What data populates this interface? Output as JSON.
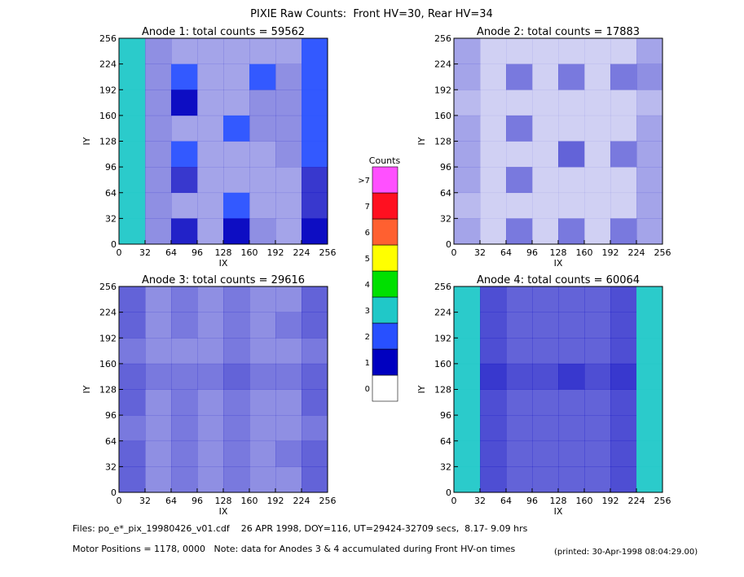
{
  "title": "PIXIE Raw Counts:  Front HV=30, Rear HV=34",
  "chart_data": [
    {
      "type": "heatmap",
      "title": "Anode 1: total counts = 59562",
      "x_label": "IX",
      "y_label": "IY",
      "xlim": [
        0,
        256
      ],
      "ylim": [
        0,
        256
      ],
      "xticks": [
        0,
        32,
        64,
        96,
        128,
        160,
        192,
        224,
        256
      ],
      "yticks": [
        0,
        32,
        64,
        96,
        128,
        160,
        192,
        224,
        256
      ],
      "values": [
        [
          2.5,
          0.4,
          0.3,
          0.3,
          0.3,
          0.3,
          0.3,
          1.2
        ],
        [
          2.5,
          0.4,
          1.2,
          0.3,
          0.3,
          1.2,
          0.4,
          1.5
        ],
        [
          2.5,
          0.4,
          1.0,
          0.3,
          0.3,
          0.4,
          0.4,
          1.2
        ],
        [
          2.5,
          0.4,
          0.3,
          0.3,
          1.2,
          0.4,
          0.4,
          1.8
        ],
        [
          2.5,
          0.4,
          1.2,
          0.3,
          0.3,
          0.3,
          0.4,
          1.2
        ],
        [
          2.5,
          0.4,
          0.8,
          0.3,
          0.3,
          0.3,
          0.3,
          0.8
        ],
        [
          2.5,
          0.4,
          0.3,
          0.3,
          1.2,
          0.3,
          0.3,
          0.8
        ],
        [
          2.5,
          0.4,
          0.9,
          0.3,
          1.0,
          0.4,
          0.3,
          1.0
        ]
      ]
    },
    {
      "type": "heatmap",
      "title": "Anode 2: total counts = 17883",
      "x_label": "IX",
      "y_label": "IY",
      "xlim": [
        0,
        256
      ],
      "ylim": [
        0,
        256
      ],
      "xticks": [
        0,
        32,
        64,
        96,
        128,
        160,
        192,
        224,
        256
      ],
      "yticks": [
        0,
        32,
        64,
        96,
        128,
        160,
        192,
        224,
        256
      ],
      "values": [
        [
          0.3,
          0.1,
          0.1,
          0.1,
          0.1,
          0.1,
          0.1,
          0.3
        ],
        [
          0.3,
          0.1,
          0.5,
          0.1,
          0.5,
          0.1,
          0.5,
          0.4
        ],
        [
          0.2,
          0.1,
          0.1,
          0.1,
          0.1,
          0.1,
          0.1,
          0.2
        ],
        [
          0.3,
          0.1,
          0.5,
          0.1,
          0.1,
          0.1,
          0.1,
          0.3
        ],
        [
          0.3,
          0.1,
          0.1,
          0.1,
          0.6,
          0.1,
          0.5,
          0.3
        ],
        [
          0.3,
          0.1,
          0.5,
          0.1,
          0.1,
          0.1,
          0.1,
          0.3
        ],
        [
          0.2,
          0.1,
          0.1,
          0.1,
          0.1,
          0.1,
          0.1,
          0.3
        ],
        [
          0.3,
          0.1,
          0.5,
          0.1,
          0.5,
          0.1,
          0.5,
          0.3
        ]
      ]
    },
    {
      "type": "heatmap",
      "title": "Anode 3: total counts = 29616",
      "x_label": "IX",
      "y_label": "IY",
      "xlim": [
        0,
        256
      ],
      "ylim": [
        0,
        256
      ],
      "xticks": [
        0,
        32,
        64,
        96,
        128,
        160,
        192,
        224,
        256
      ],
      "yticks": [
        0,
        32,
        64,
        96,
        128,
        160,
        192,
        224,
        256
      ],
      "values": [
        [
          0.6,
          0.4,
          0.5,
          0.4,
          0.5,
          0.4,
          0.4,
          0.6
        ],
        [
          0.6,
          0.4,
          0.5,
          0.4,
          0.5,
          0.4,
          0.5,
          0.6
        ],
        [
          0.5,
          0.4,
          0.4,
          0.4,
          0.5,
          0.4,
          0.4,
          0.5
        ],
        [
          0.6,
          0.5,
          0.5,
          0.5,
          0.6,
          0.5,
          0.5,
          0.6
        ],
        [
          0.6,
          0.4,
          0.5,
          0.4,
          0.5,
          0.4,
          0.4,
          0.6
        ],
        [
          0.5,
          0.4,
          0.5,
          0.4,
          0.5,
          0.4,
          0.4,
          0.5
        ],
        [
          0.6,
          0.4,
          0.5,
          0.4,
          0.5,
          0.4,
          0.5,
          0.6
        ],
        [
          0.6,
          0.4,
          0.5,
          0.4,
          0.5,
          0.4,
          0.4,
          0.6
        ]
      ]
    },
    {
      "type": "heatmap",
      "title": "Anode 4: total counts = 60064",
      "x_label": "IX",
      "y_label": "IY",
      "xlim": [
        0,
        256
      ],
      "ylim": [
        0,
        256
      ],
      "xticks": [
        0,
        32,
        64,
        96,
        128,
        160,
        192,
        224,
        256
      ],
      "yticks": [
        0,
        32,
        64,
        96,
        128,
        160,
        192,
        224,
        256
      ],
      "values": [
        [
          2.2,
          0.7,
          0.6,
          0.6,
          0.6,
          0.6,
          0.7,
          2.5
        ],
        [
          2.2,
          0.7,
          0.6,
          0.6,
          0.6,
          0.6,
          0.7,
          2.5
        ],
        [
          2.2,
          0.7,
          0.6,
          0.6,
          0.6,
          0.6,
          0.7,
          2.5
        ],
        [
          2.2,
          0.8,
          0.7,
          0.7,
          0.8,
          0.7,
          0.8,
          2.5
        ],
        [
          2.2,
          0.7,
          0.6,
          0.6,
          0.6,
          0.6,
          0.7,
          2.5
        ],
        [
          2.2,
          0.7,
          0.6,
          0.6,
          0.6,
          0.6,
          0.7,
          2.5
        ],
        [
          2.2,
          0.7,
          0.6,
          0.6,
          0.6,
          0.6,
          0.7,
          2.5
        ],
        [
          2.2,
          0.7,
          0.6,
          0.6,
          0.6,
          0.6,
          0.7,
          2.5
        ]
      ]
    }
  ],
  "colorbar": {
    "title": "Counts",
    "levels": [
      0,
      1,
      2,
      3,
      4,
      5,
      6,
      7,
      {
        "value": 8,
        "label": ">7"
      }
    ],
    "colors": [
      "#ffffff",
      "#0000c0",
      "#2850ff",
      "#20c8c8",
      "#00e000",
      "#ffff00",
      "#ff6030",
      "#ff1020",
      "#ff50ff"
    ]
  },
  "footer": [
    "Files: po_e*_pix_19980426_v01.cdf    26 APR 1998, DOY=116, UT=29424-32709 secs,  8.17- 9.09 hrs",
    "Motor Positions = 1178, 0000   Note: data for Anodes 3 & 4 accumulated during Front HV-on times",
    "(printed: 30-Apr-1998 08:04:29.00)"
  ]
}
